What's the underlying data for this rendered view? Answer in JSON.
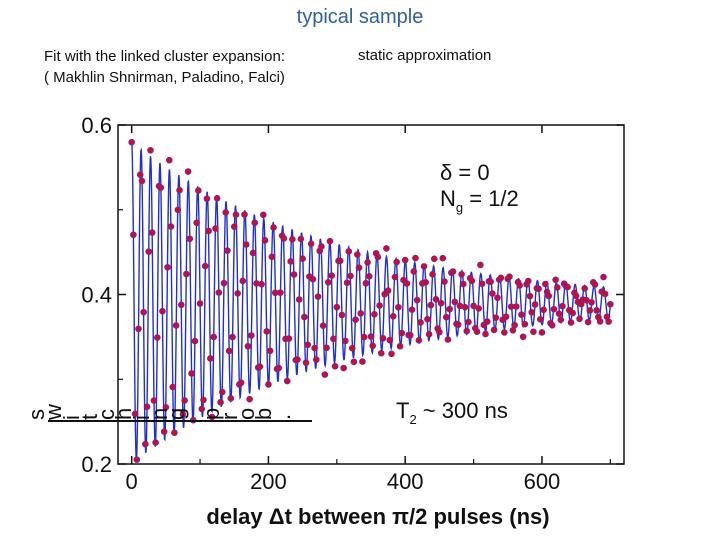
{
  "slide": {
    "title": "typical sample",
    "fit_note_line1": "Fit with the linked cluster expansion:",
    "fit_note_line2": "( Makhlin Shnirman, Paladino, Falci)",
    "static_note": "static approximation"
  },
  "chart_data": {
    "type": "line",
    "title": "",
    "xlabel_parts": [
      "delay ",
      "Δ",
      "t between ",
      "π",
      "/2 pulses (ns)"
    ],
    "ylabel_rotated": "switching prob.",
    "xlim": [
      -20,
      720
    ],
    "ylim": [
      0.2,
      0.6
    ],
    "x_ticks": [
      0,
      200,
      400,
      600
    ],
    "x_tick_labels": [
      "0",
      "200",
      "400",
      "600"
    ],
    "y_ticks": [
      0.2,
      0.4,
      0.6
    ],
    "y_tick_labels": [
      "0.2",
      "0.4",
      "0.6"
    ],
    "grid": false,
    "annotations": {
      "delta_symbol": "δ",
      "delta_rest": " = 0",
      "ng_main": "N",
      "ng_sub": "g",
      "ng_rest": " = 1/2",
      "t2_main": "T",
      "t2_sub": "2",
      "t2_rest": " ~ 300 ns"
    },
    "model": {
      "name": "damped oscillation",
      "baseline": 0.39,
      "amplitude_at_zero": 0.19,
      "decay_time_ns": 300,
      "period_ns": 13.8,
      "x_range": [
        0,
        700
      ]
    },
    "series": [
      {
        "role": "fit curve",
        "color": "#1f2fd6"
      },
      {
        "role": "measured points",
        "color": "#c8102e",
        "edge_color": "#7a1fa0",
        "x_step_ns": 2.5
      }
    ]
  }
}
